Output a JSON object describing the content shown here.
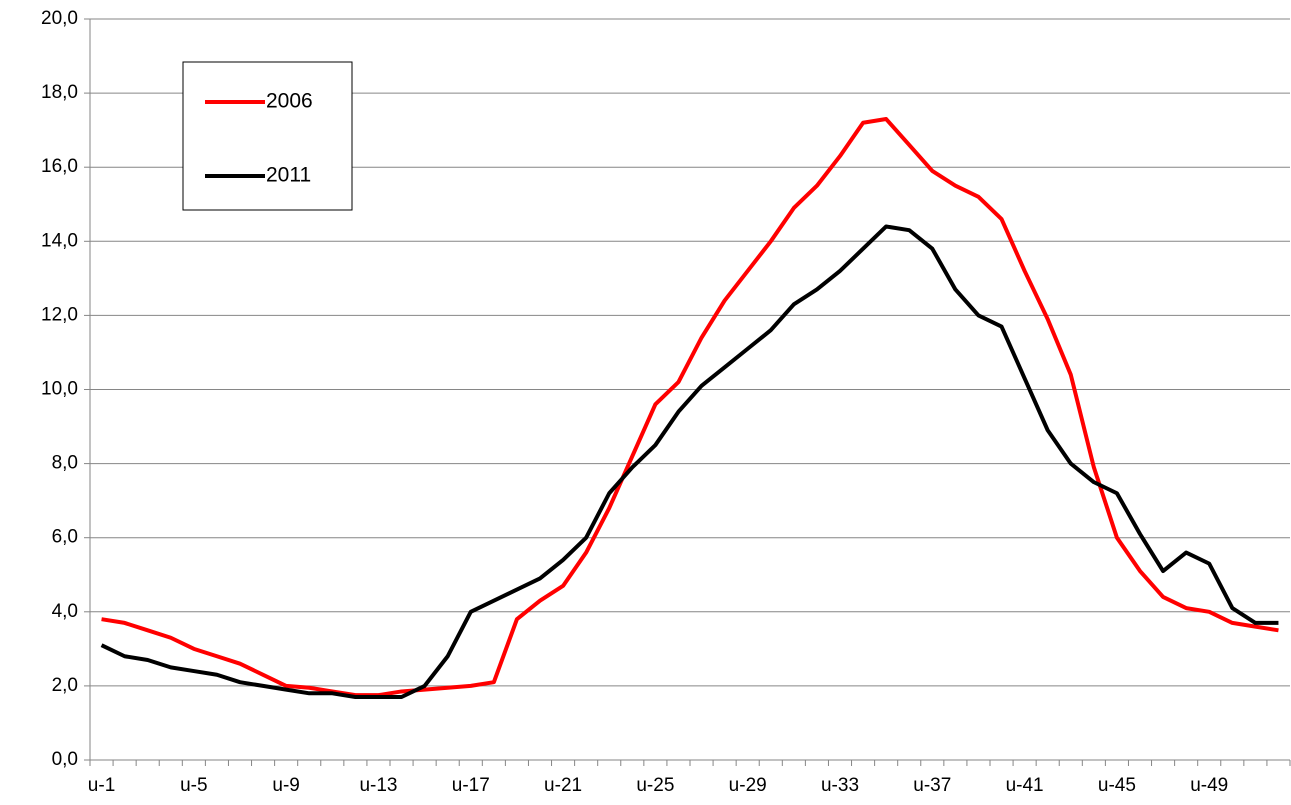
{
  "chart_data": {
    "type": "line",
    "categories": [
      "u-1",
      null,
      null,
      null,
      "u-5",
      null,
      null,
      null,
      "u-9",
      null,
      null,
      null,
      "u-13",
      null,
      null,
      null,
      "u-17",
      null,
      null,
      null,
      "u-21",
      null,
      null,
      null,
      "u-25",
      null,
      null,
      null,
      "u-29",
      null,
      null,
      null,
      "u-33",
      null,
      null,
      null,
      "u-37",
      null,
      null,
      null,
      "u-41",
      null,
      null,
      null,
      "u-45",
      null,
      null,
      null,
      "u-49",
      null,
      null,
      null
    ],
    "series": [
      {
        "name": "2006",
        "color": "#ff0000",
        "values": [
          3.8,
          3.7,
          3.5,
          3.3,
          3.0,
          2.8,
          2.6,
          2.3,
          2.0,
          1.95,
          1.85,
          1.75,
          1.75,
          1.85,
          1.9,
          1.95,
          2.0,
          2.1,
          3.8,
          4.3,
          4.7,
          5.6,
          6.8,
          8.2,
          9.6,
          10.2,
          11.4,
          12.4,
          13.2,
          14.0,
          14.9,
          15.5,
          16.3,
          17.2,
          17.3,
          16.6,
          15.9,
          15.5,
          15.2,
          14.6,
          13.2,
          11.9,
          10.4,
          7.9,
          6.0,
          5.1,
          4.4,
          4.1,
          4.0,
          3.7,
          3.6,
          3.5
        ]
      },
      {
        "name": "2011",
        "color": "#000000",
        "values": [
          3.1,
          2.8,
          2.7,
          2.5,
          2.4,
          2.3,
          2.1,
          2.0,
          1.9,
          1.8,
          1.8,
          1.7,
          1.7,
          1.7,
          2.0,
          2.8,
          4.0,
          4.3,
          4.6,
          4.9,
          5.4,
          6.0,
          7.2,
          7.9,
          8.5,
          9.4,
          10.1,
          10.6,
          11.1,
          11.6,
          12.3,
          12.7,
          13.2,
          13.8,
          14.4,
          14.3,
          13.8,
          12.7,
          12.0,
          11.7,
          10.3,
          8.9,
          8.0,
          7.5,
          7.2,
          6.1,
          5.1,
          5.6,
          5.3,
          4.1,
          3.7,
          3.7
        ]
      }
    ],
    "ylim": [
      0,
      20
    ],
    "yticks": [
      {
        "value": 0,
        "label": "0,0"
      },
      {
        "value": 2,
        "label": "2,0"
      },
      {
        "value": 4,
        "label": "4,0"
      },
      {
        "value": 6,
        "label": "6,0"
      },
      {
        "value": 8,
        "label": "8,0"
      },
      {
        "value": 10,
        "label": "10,0"
      },
      {
        "value": 12,
        "label": "12,0"
      },
      {
        "value": 14,
        "label": "14,0"
      },
      {
        "value": 16,
        "label": "16,0"
      },
      {
        "value": 18,
        "label": "18,0"
      },
      {
        "value": 20,
        "label": "20,0"
      }
    ],
    "grid": true
  }
}
